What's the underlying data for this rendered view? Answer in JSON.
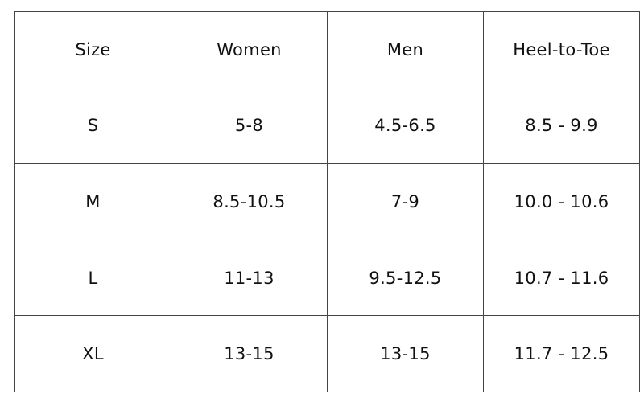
{
  "table": {
    "header": [
      "Size",
      "Women",
      "Men",
      "Heel-to-Toe"
    ],
    "rows": [
      [
        "S",
        "5-8",
        "4.5-6.5",
        "8.5 - 9.9"
      ],
      [
        "M",
        "8.5-10.5",
        "7-9",
        "10.0 - 10.6"
      ],
      [
        "L",
        "11-13",
        "9.5-12.5",
        "10.7 - 11.6"
      ],
      [
        "XL",
        "13-15",
        "13-15",
        "11.7 - 12.5"
      ]
    ]
  }
}
